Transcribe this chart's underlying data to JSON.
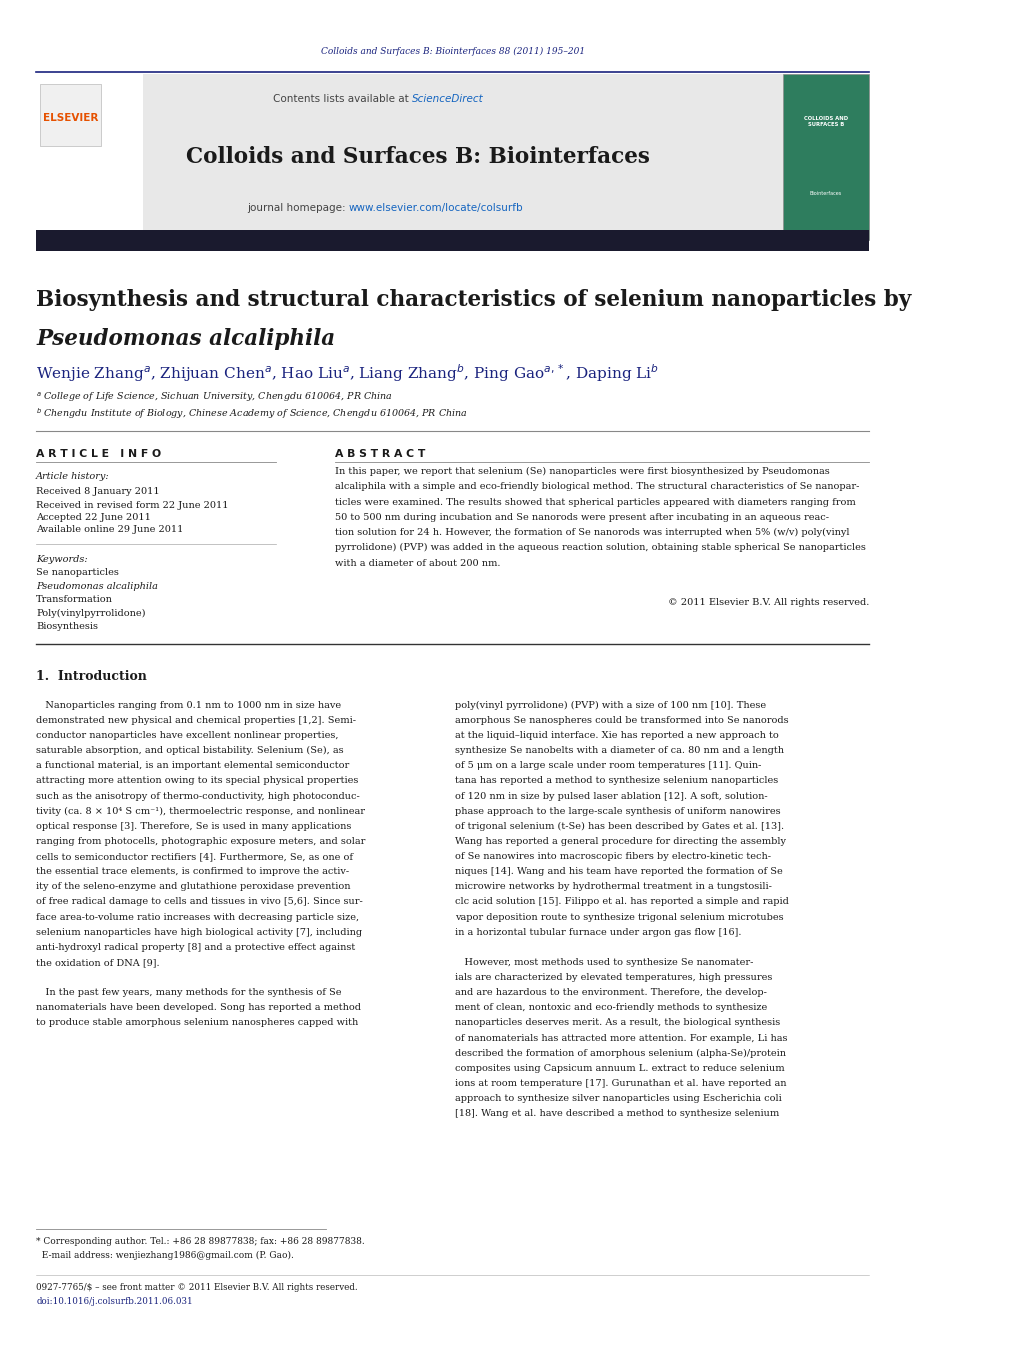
{
  "page_width": 10.21,
  "page_height": 13.51,
  "bg_color": "#ffffff",
  "header_journal_ref": "Colloids and Surfaces B: Biointerfaces 88 (2011) 195–201",
  "header_journal_color": "#1a237e",
  "journal_name": "Colloids and Surfaces B: Biointerfaces",
  "contents_text": "Contents lists available at ",
  "sciencedirect_text": "ScienceDirect",
  "sciencedirect_color": "#1565c0",
  "journal_homepage_text": "journal homepage: ",
  "journal_url": "www.elsevier.com/locate/colsurfb",
  "journal_url_color": "#1565c0",
  "header_bg": "#e8e8e8",
  "dark_bar_color": "#1a1a2e",
  "article_title_line1": "Biosynthesis and structural characteristics of selenium nanoparticles by",
  "article_title_line2_italic": "Pseudomonas alcaliphila",
  "article_info_header": "A R T I C L E   I N F O",
  "abstract_header": "A B S T R A C T",
  "article_history_label": "Article history:",
  "received_text": "Received 8 January 2011",
  "received_revised": "Received in revised form 22 June 2011",
  "accepted": "Accepted 22 June 2011",
  "available": "Available online 29 June 2011",
  "keywords_label": "Keywords:",
  "keyword1": "Se nanoparticles",
  "keyword2": "Pseudomonas alcaliphila",
  "keyword3": "Transformation",
  "keyword4": "Poly(vinylpyrrolidone)",
  "keyword5": "Biosynthesis",
  "copyright_text": "© 2011 Elsevier B.V. All rights reserved.",
  "intro_header": "1.  Introduction",
  "footnote_line1": "* Corresponding author. Tel.: +86 28 89877838; fax: +86 28 89877838.",
  "footnote_line2": "  E-mail address: wenjiezhang1986@gmail.com (P. Gao).",
  "issn_text": "0927-7765/$ – see front matter © 2011 Elsevier B.V. All rights reserved.",
  "doi_text": "doi:10.1016/j.colsurfb.2011.06.031",
  "abstract_lines": [
    "In this paper, we report that selenium (Se) nanoparticles were first biosynthesized by Pseudomonas",
    "alcaliphila with a simple and eco-friendly biological method. The structural characteristics of Se nanopar-",
    "ticles were examined. The results showed that spherical particles appeared with diameters ranging from",
    "50 to 500 nm during incubation and Se nanorods were present after incubating in an aqueous reac-",
    "tion solution for 24 h. However, the formation of Se nanorods was interrupted when 5% (w/v) poly(vinyl",
    "pyrrolidone) (PVP) was added in the aqueous reaction solution, obtaining stable spherical Se nanoparticles",
    "with a diameter of about 200 nm."
  ],
  "intro_col1_lines": [
    "   Nanoparticles ranging from 0.1 nm to 1000 nm in size have",
    "demonstrated new physical and chemical properties [1,2]. Semi-",
    "conductor nanoparticles have excellent nonlinear properties,",
    "saturable absorption, and optical bistability. Selenium (Se), as",
    "a functional material, is an important elemental semiconductor",
    "attracting more attention owing to its special physical properties",
    "such as the anisotropy of thermo-conductivity, high photoconduc-",
    "tivity (ca. 8 × 10⁴ S cm⁻¹), thermoelectric response, and nonlinear",
    "optical response [3]. Therefore, Se is used in many applications",
    "ranging from photocells, photographic exposure meters, and solar",
    "cells to semiconductor rectifiers [4]. Furthermore, Se, as one of",
    "the essential trace elements, is confirmed to improve the activ-",
    "ity of the seleno-enzyme and glutathione peroxidase prevention",
    "of free radical damage to cells and tissues in vivo [5,6]. Since sur-",
    "face area-to-volume ratio increases with decreasing particle size,",
    "selenium nanoparticles have high biological activity [7], including",
    "anti-hydroxyl radical property [8] and a protective effect against",
    "the oxidation of DNA [9].",
    "",
    "   In the past few years, many methods for the synthesis of Se",
    "nanomaterials have been developed. Song has reported a method",
    "to produce stable amorphous selenium nanospheres capped with"
  ],
  "intro_col2_lines": [
    "poly(vinyl pyrrolidone) (PVP) with a size of 100 nm [10]. These",
    "amorphous Se nanospheres could be transformed into Se nanorods",
    "at the liquid–liquid interface. Xie has reported a new approach to",
    "synthesize Se nanobelts with a diameter of ca. 80 nm and a length",
    "of 5 μm on a large scale under room temperatures [11]. Quin-",
    "tana has reported a method to synthesize selenium nanoparticles",
    "of 120 nm in size by pulsed laser ablation [12]. A soft, solution-",
    "phase approach to the large-scale synthesis of uniform nanowires",
    "of trigonal selenium (t-Se) has been described by Gates et al. [13].",
    "Wang has reported a general procedure for directing the assembly",
    "of Se nanowires into macroscopic fibers by electro-kinetic tech-",
    "niques [14]. Wang and his team have reported the formation of Se",
    "microwire networks by hydrothermal treatment in a tungstosili-",
    "clc acid solution [15]. Filippo et al. has reported a simple and rapid",
    "vapor deposition route to synthesize trigonal selenium microtubes",
    "in a horizontal tubular furnace under argon gas flow [16].",
    "",
    "   However, most methods used to synthesize Se nanomater-",
    "ials are characterized by elevated temperatures, high pressures",
    "and are hazardous to the environment. Therefore, the develop-",
    "ment of clean, nontoxic and eco-friendly methods to synthesize",
    "nanoparticles deserves merit. As a result, the biological synthesis",
    "of nanomaterials has attracted more attention. For example, Li has",
    "described the formation of amorphous selenium (alpha-Se)/protein",
    "composites using Capsicum annuum L. extract to reduce selenium",
    "ions at room temperature [17]. Gurunathan et al. have reported an",
    "approach to synthesize silver nanoparticles using Escherichia coli",
    "[18]. Wang et al. have described a method to synthesize selenium"
  ]
}
